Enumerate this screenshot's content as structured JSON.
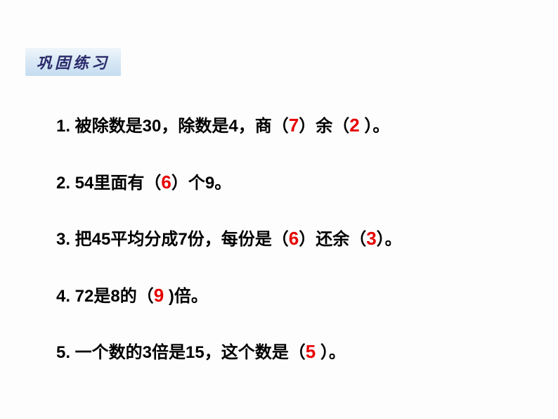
{
  "header": {
    "title": "巩固练习"
  },
  "colors": {
    "text": "#000000",
    "answer": "#e60000",
    "header_bg_top": "#f0f6fb",
    "header_bg_bottom": "#c5dcf0",
    "header_text": "#2a2a6a",
    "background": "#fdfdfd"
  },
  "typography": {
    "body_fontsize": 24,
    "answer_fontsize": 26,
    "header_fontsize": 22,
    "line_spacing": 44
  },
  "questions": [
    {
      "parts": [
        "1. 被除数是30，除数是4，商（",
        "7",
        "）余（",
        "2",
        " ）。"
      ],
      "answers_at": [
        1,
        3
      ]
    },
    {
      "parts": [
        "2. 54里面有（",
        "6",
        "）个9。"
      ],
      "answers_at": [
        1
      ]
    },
    {
      "parts": [
        "3. 把45平均分成7份，每份是（",
        "6",
        "）还余（",
        "3",
        "）。"
      ],
      "answers_at": [
        1,
        3
      ]
    },
    {
      "parts": [
        "4. 72是8的（",
        "9",
        " )倍。"
      ],
      "answers_at": [
        1
      ]
    },
    {
      "parts": [
        "5. 一个数的3倍是15，这个数是（",
        "5",
        " ）。"
      ],
      "answers_at": [
        1
      ]
    }
  ]
}
